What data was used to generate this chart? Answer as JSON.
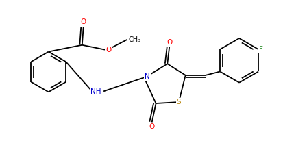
{
  "bg_color": "#ffffff",
  "line_color": "#000000",
  "atom_colors": {
    "O": "#ff0000",
    "N": "#0000cd",
    "S": "#b8860b",
    "F": "#228b22",
    "H": "#000000",
    "C": "#000000"
  },
  "line_width": 1.3,
  "font_size": 7.5,
  "figsize": [
    4.14,
    2.06
  ],
  "dpi": 100
}
